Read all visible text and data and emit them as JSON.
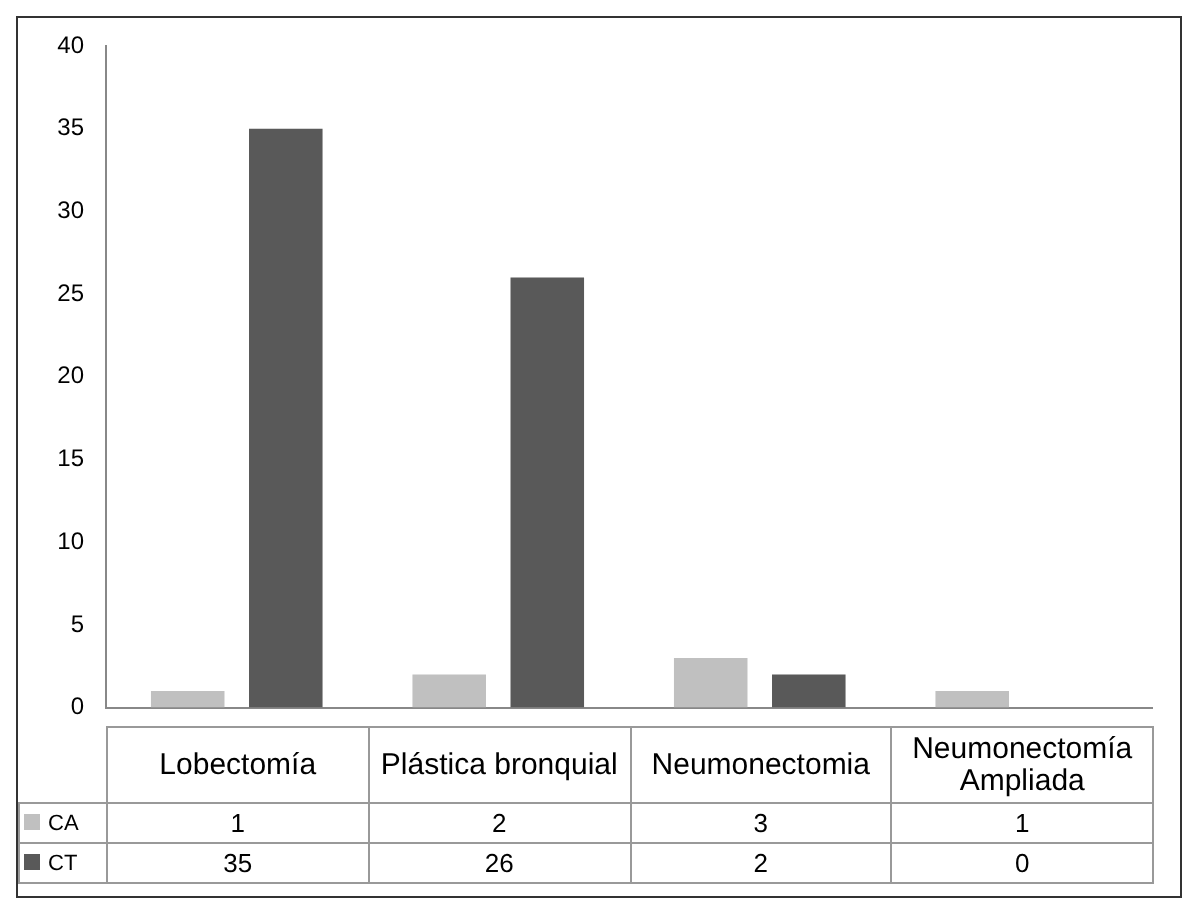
{
  "chart_data": {
    "type": "bar",
    "categories": [
      "Lobectomía",
      "Plástica bronquial",
      "Neumonectomia",
      "Neumonectomía Ampliada"
    ],
    "series": [
      {
        "name": "CA",
        "color": "#c0c0c0",
        "values": [
          1,
          2,
          3,
          1
        ]
      },
      {
        "name": "CT",
        "color": "#595959",
        "values": [
          35,
          26,
          2,
          0
        ]
      }
    ],
    "ylim": [
      0,
      40
    ],
    "yticks": [
      0,
      5,
      10,
      15,
      20,
      25,
      30,
      35,
      40
    ],
    "grid": false,
    "legend": "bottom",
    "data_labels": true
  }
}
